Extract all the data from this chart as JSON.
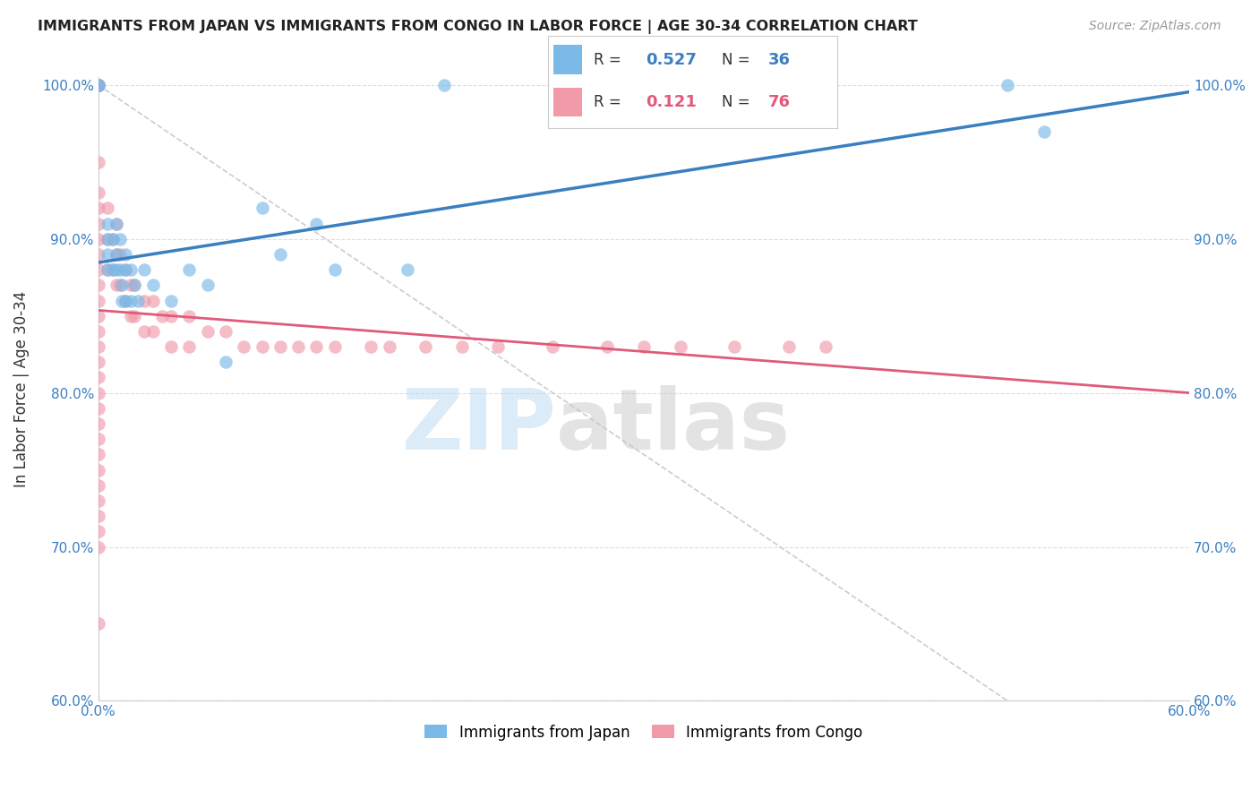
{
  "title": "IMMIGRANTS FROM JAPAN VS IMMIGRANTS FROM CONGO IN LABOR FORCE | AGE 30-34 CORRELATION CHART",
  "source": "Source: ZipAtlas.com",
  "ylabel": "In Labor Force | Age 30-34",
  "xlim": [
    0.0,
    0.6
  ],
  "ylim": [
    0.6,
    1.005
  ],
  "xticks": [
    0.0,
    0.1,
    0.2,
    0.3,
    0.4,
    0.5,
    0.6
  ],
  "xticklabels": [
    "0.0%",
    "",
    "",
    "",
    "",
    "",
    "60.0%"
  ],
  "yticks": [
    0.6,
    0.7,
    0.8,
    0.9,
    1.0
  ],
  "yticklabels": [
    "60.0%",
    "70.0%",
    "80.0%",
    "90.0%",
    "100.0%"
  ],
  "legend_japan_r": "0.527",
  "legend_japan_n": "36",
  "legend_congo_r": "0.121",
  "legend_congo_n": "76",
  "japan_color": "#7ab9e8",
  "congo_color": "#f09aaa",
  "japan_line_color": "#3a7fc1",
  "congo_line_color": "#e05a7a",
  "diagonal_color": "#cccccc",
  "watermark_zip": "ZIP",
  "watermark_atlas": "atlas",
  "japan_x": [
    0.0,
    0.0,
    0.005,
    0.005,
    0.005,
    0.005,
    0.008,
    0.008,
    0.01,
    0.01,
    0.01,
    0.012,
    0.012,
    0.013,
    0.013,
    0.015,
    0.015,
    0.015,
    0.018,
    0.018,
    0.02,
    0.022,
    0.025,
    0.03,
    0.04,
    0.05,
    0.06,
    0.07,
    0.09,
    0.1,
    0.12,
    0.13,
    0.17,
    0.19,
    0.5,
    0.52
  ],
  "japan_y": [
    1.0,
    1.0,
    0.91,
    0.9,
    0.89,
    0.88,
    0.9,
    0.88,
    0.91,
    0.89,
    0.88,
    0.9,
    0.88,
    0.87,
    0.86,
    0.89,
    0.88,
    0.86,
    0.88,
    0.86,
    0.87,
    0.86,
    0.88,
    0.87,
    0.86,
    0.88,
    0.87,
    0.82,
    0.92,
    0.89,
    0.91,
    0.88,
    0.88,
    1.0,
    1.0,
    0.97
  ],
  "congo_x": [
    0.0,
    0.0,
    0.0,
    0.0,
    0.0,
    0.0,
    0.0,
    0.0,
    0.0,
    0.0,
    0.0,
    0.0,
    0.0,
    0.0,
    0.0,
    0.0,
    0.0,
    0.0,
    0.0,
    0.0,
    0.0,
    0.0,
    0.0,
    0.0,
    0.0,
    0.0,
    0.0,
    0.0,
    0.0,
    0.0,
    0.0,
    0.005,
    0.005,
    0.005,
    0.008,
    0.008,
    0.01,
    0.01,
    0.01,
    0.012,
    0.012,
    0.015,
    0.015,
    0.018,
    0.018,
    0.02,
    0.02,
    0.025,
    0.025,
    0.03,
    0.03,
    0.035,
    0.04,
    0.04,
    0.05,
    0.05,
    0.06,
    0.07,
    0.08,
    0.09,
    0.1,
    0.11,
    0.12,
    0.13,
    0.15,
    0.16,
    0.18,
    0.2,
    0.22,
    0.25,
    0.28,
    0.3,
    0.32,
    0.35,
    0.38,
    0.4
  ],
  "congo_y": [
    1.0,
    1.0,
    1.0,
    1.0,
    1.0,
    0.95,
    0.93,
    0.92,
    0.91,
    0.9,
    0.89,
    0.88,
    0.87,
    0.86,
    0.85,
    0.84,
    0.83,
    0.82,
    0.81,
    0.8,
    0.79,
    0.78,
    0.77,
    0.76,
    0.75,
    0.74,
    0.73,
    0.72,
    0.71,
    0.7,
    0.65,
    0.92,
    0.9,
    0.88,
    0.9,
    0.88,
    0.91,
    0.89,
    0.87,
    0.89,
    0.87,
    0.88,
    0.86,
    0.87,
    0.85,
    0.87,
    0.85,
    0.86,
    0.84,
    0.86,
    0.84,
    0.85,
    0.85,
    0.83,
    0.85,
    0.83,
    0.84,
    0.84,
    0.83,
    0.83,
    0.83,
    0.83,
    0.83,
    0.83,
    0.83,
    0.83,
    0.83,
    0.83,
    0.83,
    0.83,
    0.83,
    0.83,
    0.83,
    0.83,
    0.83,
    0.83
  ]
}
